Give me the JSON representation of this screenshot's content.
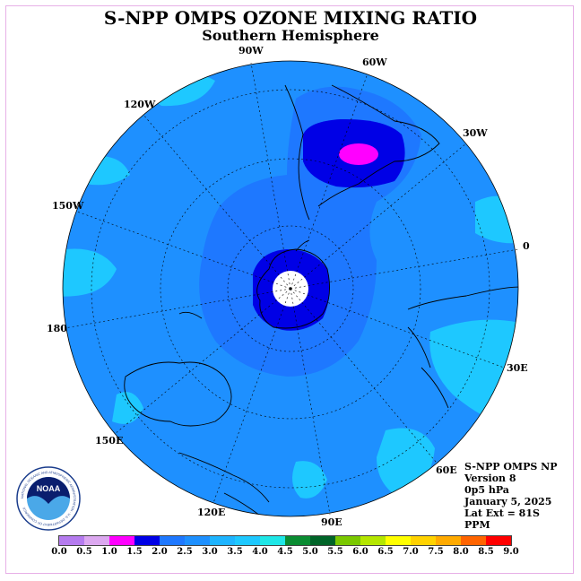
{
  "header": {
    "title": "S-NPP OMPS OZONE MIXING RATIO",
    "subtitle": "Southern Hemisphere"
  },
  "map": {
    "projection": "south-polar-stereographic",
    "longitude_labels": [
      "90W",
      "60W",
      "30W",
      "0",
      "30E",
      "60E",
      "90E",
      "120E",
      "150E",
      "180",
      "150W",
      "120W"
    ],
    "colors": {
      "background_field": "#1e90ff",
      "light_field": "#1ec8ff",
      "dark_field": "#0000e6",
      "max_field": "#ff00ff",
      "missing_center": "#ffffff"
    }
  },
  "info": {
    "line1": "S-NPP OMPS NP",
    "line2": "Version 8",
    "line3": "0p5 hPa",
    "line4": "January 5, 2025",
    "line5": "Lat Ext = 81S",
    "line6": "PPM"
  },
  "colorbar": {
    "ticks": [
      "0.0",
      "0.5",
      "1.0",
      "1.5",
      "2.0",
      "2.5",
      "3.0",
      "3.5",
      "4.0",
      "4.5",
      "5.0",
      "5.5",
      "6.0",
      "6.5",
      "7.0",
      "7.5",
      "8.0",
      "8.5",
      "9.0"
    ],
    "colors": [
      "#b57bef",
      "#dca8f0",
      "#ff00ff",
      "#0000e6",
      "#1e78ff",
      "#1e90ff",
      "#1eb4ff",
      "#1ec8ff",
      "#1ee6e6",
      "#0a8c32",
      "#006428",
      "#7ac800",
      "#b4e600",
      "#ffff00",
      "#ffd200",
      "#ffaa00",
      "#ff6400",
      "#ff0000",
      "#8c5a3c"
    ]
  },
  "logo": {
    "text": "NOAA",
    "ring_text": "NATIONAL OCEANIC AND ATMOSPHERIC ADMINISTRATION · U.S. DEPARTMENT OF COMMERCE"
  }
}
